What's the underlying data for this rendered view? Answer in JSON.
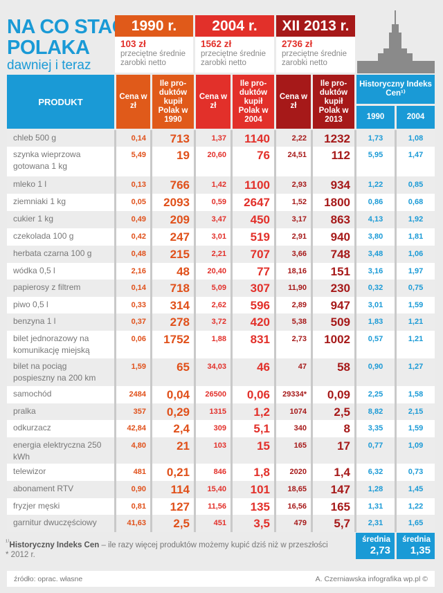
{
  "title": {
    "line1": "NA CO STAĆ",
    "line2": "POLAKA",
    "subtitle": "dawniej i teraz"
  },
  "colors": {
    "orange": "#e05a1a",
    "red": "#e2302a",
    "darkred": "#a61919",
    "blue": "#1a9ad6"
  },
  "periods": [
    {
      "year": "1990 r.",
      "salary": "103 zł",
      "caption": "przeciętne średnie zarobki netto"
    },
    {
      "year": "2004 r.",
      "salary": "1562 zł",
      "caption": "przeciętne średnie zarobki netto"
    },
    {
      "year": "XII 2013 r.",
      "salary": "2736 zł",
      "caption": "przeciętne średnie zarobki netto"
    }
  ],
  "headers": {
    "product": "PRODUKT",
    "price": "Cena w zł",
    "qty1990": "Ile pro-duktów kupił Polak w 1990",
    "qty2004": "Ile pro-duktów kupił Polak w 2004",
    "qty2013": "Ile pro-duktów kupił Polak w 2013",
    "index": "Historyczny Indeks Cen¹⁾",
    "idx1990": "1990",
    "idx2004": "2004"
  },
  "rows": [
    [
      "chleb 500 g",
      "0,14",
      "713",
      "1,37",
      "1140",
      "2,22",
      "1232",
      "1,73",
      "1,08"
    ],
    [
      "szynka wieprzowa gotowana 1 kg",
      "5,49",
      "19",
      "20,60",
      "76",
      "24,51",
      "112",
      "5,95",
      "1,47"
    ],
    [
      "mleko 1 l",
      "0,13",
      "766",
      "1,42",
      "1100",
      "2,93",
      "934",
      "1,22",
      "0,85"
    ],
    [
      "ziemniaki 1 kg",
      "0,05",
      "2093",
      "0,59",
      "2647",
      "1,52",
      "1800",
      "0,86",
      "0,68"
    ],
    [
      "cukier 1 kg",
      "0,49",
      "209",
      "3,47",
      "450",
      "3,17",
      "863",
      "4,13",
      "1,92"
    ],
    [
      "czekolada 100 g",
      "0,42",
      "247",
      "3,01",
      "519",
      "2,91",
      "940",
      "3,80",
      "1,81"
    ],
    [
      "herbata czarna 100 g",
      "0,48",
      "215",
      "2,21",
      "707",
      "3,66",
      "748",
      "3,48",
      "1,06"
    ],
    [
      "wódka 0,5 l",
      "2,16",
      "48",
      "20,40",
      "77",
      "18,16",
      "151",
      "3,16",
      "1,97"
    ],
    [
      "papierosy z filtrem",
      "0,14",
      "718",
      "5,09",
      "307",
      "11,90",
      "230",
      "0,32",
      "0,75"
    ],
    [
      "piwo 0,5 l",
      "0,33",
      "314",
      "2,62",
      "596",
      "2,89",
      "947",
      "3,01",
      "1,59"
    ],
    [
      "benzyna 1 l",
      "0,37",
      "278",
      "3,72",
      "420",
      "5,38",
      "509",
      "1,83",
      "1,21"
    ],
    [
      "bilet jednorazowy na komunikację miejską",
      "0,06",
      "1752",
      "1,88",
      "831",
      "2,73",
      "1002",
      "0,57",
      "1,21"
    ],
    [
      "bilet na pociąg pospieszny na 200 km",
      "1,59",
      "65",
      "34,03",
      "46",
      "47",
      "58",
      "0,90",
      "1,27"
    ],
    [
      "samochód",
      "2484",
      "0,04",
      "26500",
      "0,06",
      "29334*",
      "0,09",
      "2,25",
      "1,58"
    ],
    [
      "pralka",
      "357",
      "0,29",
      "1315",
      "1,2",
      "1074",
      "2,5",
      "8,82",
      "2,15"
    ],
    [
      "odkurzacz",
      "42,84",
      "2,4",
      "309",
      "5,1",
      "340",
      "8",
      "3,35",
      "1,59"
    ],
    [
      "energia elektryczna 250 kWh",
      "4,80",
      "21",
      "103",
      "15",
      "165",
      "17",
      "0,77",
      "1,09"
    ],
    [
      "telewizor",
      "481",
      "0,21",
      "846",
      "1,8",
      "2020",
      "1,4",
      "6,32",
      "0,73"
    ],
    [
      "abonament RTV",
      "0,90",
      "114",
      "15,40",
      "101",
      "18,65",
      "147",
      "1,28",
      "1,45"
    ],
    [
      "fryzjer męski",
      "0,81",
      "127",
      "11,56",
      "135",
      "16,56",
      "165",
      "1,31",
      "1,22"
    ],
    [
      "garnitur dwuczęściowy",
      "41,63",
      "2,5",
      "451",
      "3,5",
      "479",
      "5,7",
      "2,31",
      "1,65"
    ]
  ],
  "averages": [
    {
      "label": "średnia",
      "value": "2,73"
    },
    {
      "label": "średnia",
      "value": "1,35"
    }
  ],
  "footnote": {
    "marker": "¹⁾",
    "term": "Historyczny Indeks Cen",
    "text": " – ile razy więcej produktów możemy kupić dziś niż w przeszłości",
    "star": "* 2012 r."
  },
  "source": {
    "left": "źródło: oprac. własne",
    "right": "A. Czerniawska infografika wp.pl ©"
  }
}
